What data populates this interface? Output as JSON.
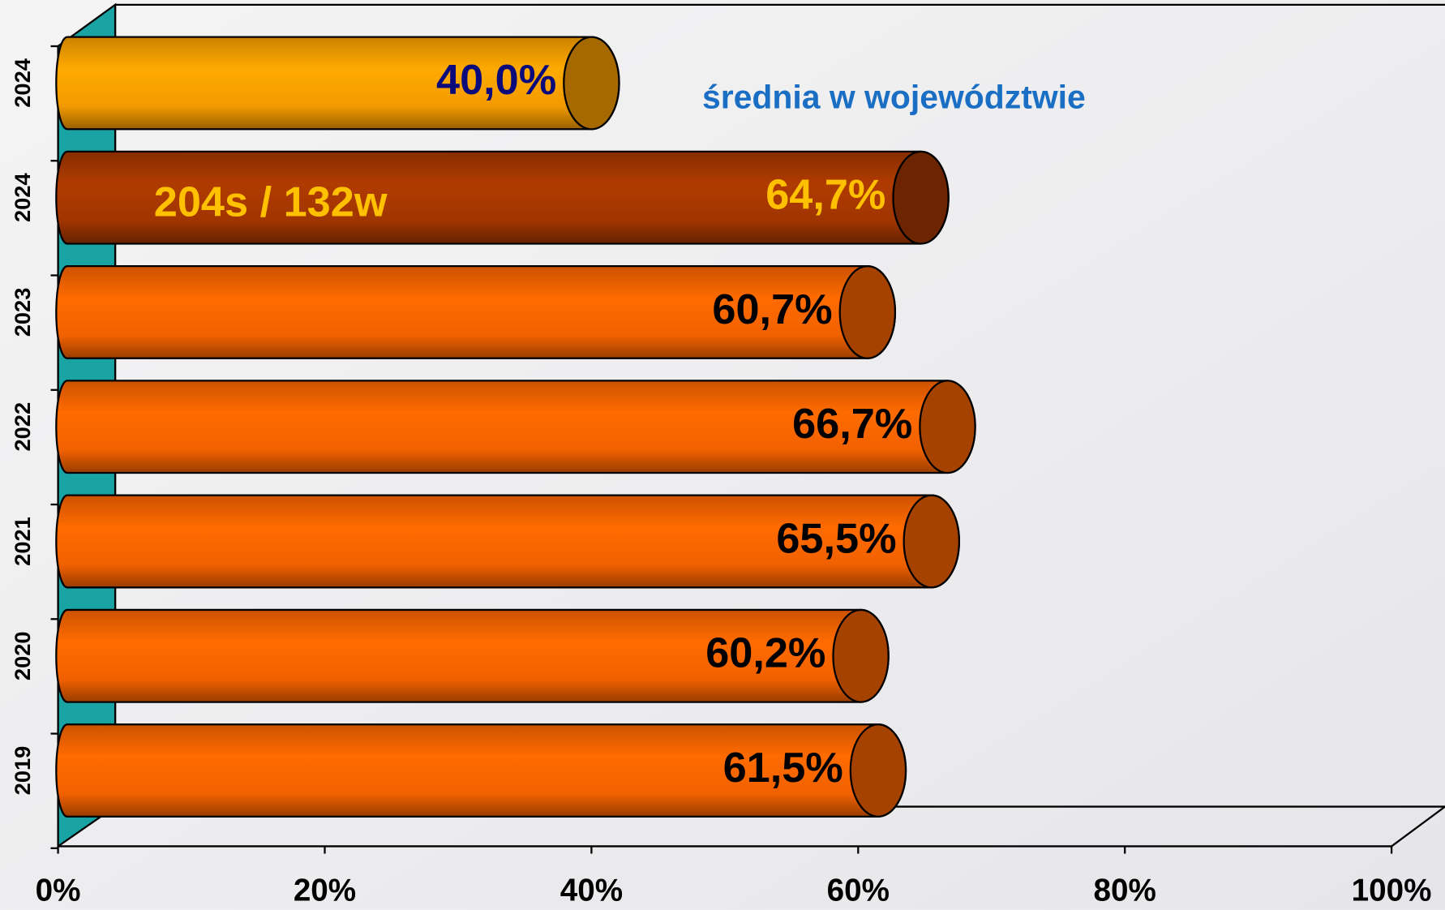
{
  "chart_data": {
    "type": "bar3d",
    "categories": [
      "2024",
      "2024",
      "2023",
      "2022",
      "2021",
      "2020",
      "2019"
    ],
    "values": [
      40.0,
      64.7,
      60.7,
      66.7,
      65.5,
      60.2,
      61.5
    ],
    "value_labels": [
      "40,0%",
      "64,7%",
      "60,7%",
      "66,7%",
      "65,5%",
      "60,2%",
      "61,5%"
    ],
    "colors": [
      "#ffa200",
      "#a83800",
      "#ff6600",
      "#ff6600",
      "#ff6600",
      "#ff6600",
      "#ff6600"
    ],
    "label_colors": [
      "#0a0a7a",
      "#ffc000",
      "#000000",
      "#000000",
      "#000000",
      "#000000",
      "#000000"
    ],
    "xlim": [
      0,
      100
    ],
    "xticks": [
      {
        "value": 0,
        "label": "0%"
      },
      {
        "value": 20,
        "label": "20%"
      },
      {
        "value": 40,
        "label": "40%"
      },
      {
        "value": 60,
        "label": "60%"
      },
      {
        "value": 80,
        "label": "80%"
      },
      {
        "value": 100,
        "label": "100%"
      }
    ],
    "annotations": [
      "średnia w województwie",
      "204s / 132w"
    ],
    "wall_color": "#1aa3a3"
  }
}
